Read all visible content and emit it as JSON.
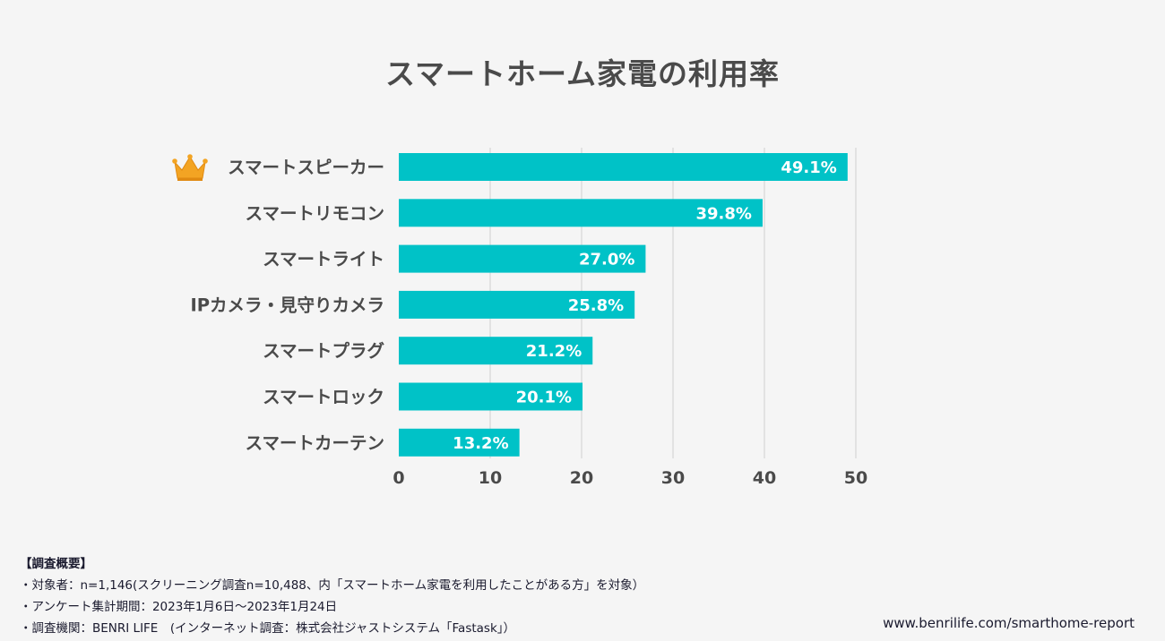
{
  "chart_data": {
    "type": "bar",
    "orientation": "horizontal",
    "title": "スマートホーム家電の利用率",
    "categories": [
      "スマートスピーカー",
      "スマートリモコン",
      "スマートライト",
      "IPカメラ・見守りカメラ",
      "スマートプラグ",
      "スマートロック",
      "スマートカーテン"
    ],
    "values": [
      49.1,
      39.8,
      27.0,
      25.8,
      21.2,
      20.1,
      13.2
    ],
    "data_labels": [
      "49.1%",
      "39.8%",
      "27.0%",
      "25.8%",
      "21.2%",
      "20.1%",
      "13.2%"
    ],
    "xlim": [
      0,
      50
    ],
    "xticks": [
      0,
      10,
      20,
      30,
      40,
      50
    ],
    "xlabel": "",
    "ylabel": "",
    "grid": true,
    "bar_color": "#00c2c7",
    "highlight_icon": "crown-icon",
    "highlight_color": "#f3a423"
  },
  "notes": {
    "heading": "【調査概要】",
    "lines": [
      "・対象者：n=1,146(スクリーニング調査n=10,488、内「スマートホーム家電を利用したことがある方」を対象）",
      "・アンケート集計期間：2023年1月6日〜2023年1月24日",
      "・調査機関：BENRI LIFE　(インターネット調査：株式会社ジャストシステム「Fastask」）"
    ]
  },
  "source_url": "www.benrilife.com/smarthome-report"
}
